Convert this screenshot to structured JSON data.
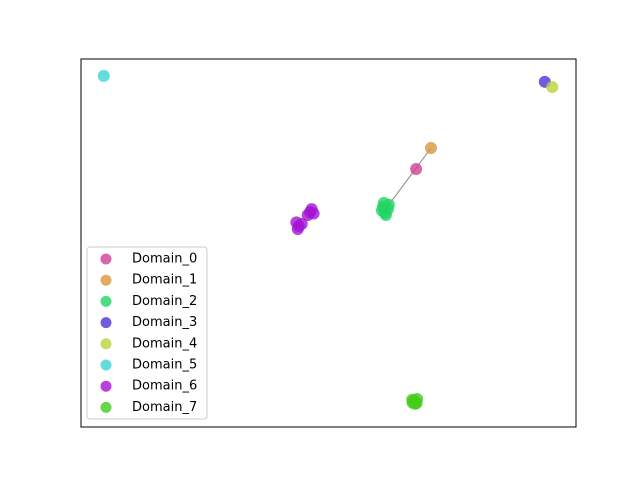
{
  "chart_data": {
    "type": "scatter",
    "xlim": [
      0,
      100
    ],
    "ylim": [
      0,
      100
    ],
    "series": [
      {
        "name": "Domain_0",
        "color": "#d03f96",
        "x": [
          67.7
        ],
        "y": [
          70.1
        ]
      },
      {
        "name": "Domain_1",
        "color": "#d9963a",
        "x": [
          70.7
        ],
        "y": [
          75.8
        ]
      },
      {
        "name": "Domain_2",
        "color": "#22d464",
        "x": [
          61.0,
          62.0,
          61.4,
          62.2,
          60.8,
          61.6,
          61.2
        ],
        "y": [
          59.8,
          59.2,
          58.2,
          60.4,
          58.8,
          57.6,
          60.9
        ]
      },
      {
        "name": "Domain_3",
        "color": "#4b33d8",
        "x": [
          93.7
        ],
        "y": [
          93.8
        ]
      },
      {
        "name": "Domain_4",
        "color": "#b8d43a",
        "x": [
          95.2
        ],
        "y": [
          92.4
        ]
      },
      {
        "name": "Domain_5",
        "color": "#3dd3d6",
        "x": [
          4.6
        ],
        "y": [
          95.4
        ]
      },
      {
        "name": "Domain_6",
        "color": "#a414d4",
        "x": [
          46.3,
          47.0,
          45.8,
          46.6,
          44.0,
          43.5,
          44.6,
          43.8
        ],
        "y": [
          58.4,
          58.0,
          57.6,
          59.2,
          54.6,
          55.6,
          55.2,
          53.8
        ]
      },
      {
        "name": "Domain_7",
        "color": "#44cc1c",
        "x": [
          67.3,
          67.9,
          66.9,
          67.5,
          67.0,
          67.8
        ],
        "y": [
          7.1,
          7.6,
          7.4,
          6.3,
          6.6,
          6.5
        ]
      }
    ]
  }
}
